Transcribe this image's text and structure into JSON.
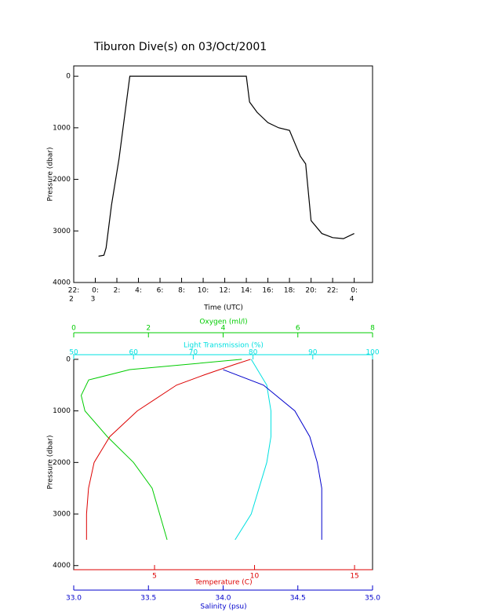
{
  "chart_data": [
    {
      "type": "line",
      "title": "Tiburon Dive(s) on 03/Oct/2001",
      "xlabel": "Time (UTC)",
      "ylabel": "Pressure (dbar)",
      "xlim": [
        -2,
        25.7
      ],
      "ylim": [
        4000,
        -200
      ],
      "xticks": [
        {
          "value": -2,
          "label": "22:"
        },
        {
          "value": 0,
          "label": "0:"
        },
        {
          "value": 2,
          "label": "2:"
        },
        {
          "value": 4,
          "label": "4:"
        },
        {
          "value": 6,
          "label": "6:"
        },
        {
          "value": 8,
          "label": "8:"
        },
        {
          "value": 10,
          "label": "10:"
        },
        {
          "value": 12,
          "label": "12:"
        },
        {
          "value": 14,
          "label": "14:"
        },
        {
          "value": 16,
          "label": "16:"
        },
        {
          "value": 18,
          "label": "18:"
        },
        {
          "value": 20,
          "label": "20:"
        },
        {
          "value": 22,
          "label": "22:"
        },
        {
          "value": 24,
          "label": "0:"
        }
      ],
      "xtick_days": [
        "2",
        "3",
        null,
        null,
        null,
        null,
        null,
        null,
        null,
        null,
        null,
        null,
        null,
        "4"
      ],
      "yticks": [
        0,
        1000,
        2000,
        3000,
        4000
      ],
      "x": [
        0.3,
        0.8,
        1.0,
        1.5,
        2.2,
        3.2,
        8,
        14.0,
        14.3,
        15,
        16,
        17,
        18,
        18.5,
        19,
        19.5,
        20,
        21,
        22,
        23,
        24
      ],
      "series": [
        {
          "color": "#000000",
          "values": [
            3490,
            3470,
            3330,
            2500,
            1600,
            0,
            0,
            0,
            500,
            700,
            900,
            1000,
            1050,
            1300,
            1550,
            1700,
            2800,
            3050,
            3130,
            3150,
            3050
          ]
        }
      ]
    },
    {
      "type": "profile",
      "ylabel": "Pressure (dbar)",
      "ylim": [
        4080,
        -90
      ],
      "yticks": [
        0,
        1000,
        2000,
        3000,
        4000
      ],
      "x_axes": [
        {
          "label": "Oxygen (ml/l)",
          "color": "#00cc00",
          "lim": [
            0,
            8
          ],
          "ticks": [
            0,
            2,
            4,
            6,
            8
          ]
        },
        {
          "label": "Light Transmission (%)",
          "color": "#00e0e0",
          "lim": [
            50,
            100
          ],
          "ticks": [
            50,
            60,
            70,
            80,
            90,
            100
          ]
        },
        {
          "label": "Temperature (C)",
          "color": "#dd0000",
          "lim": [
            0.96,
            15.9
          ],
          "ticks": [
            5,
            10,
            15
          ]
        },
        {
          "label": "Salinity (psu)",
          "color": "#0000cc",
          "lim": [
            33,
            35
          ],
          "ticks": [
            {
              "value": 33,
              "label": "33.0"
            },
            33.5,
            {
              "value": 34,
              "label": "34.0"
            },
            34.5,
            {
              "value": 35,
              "label": "35.0"
            }
          ]
        }
      ],
      "series": [
        {
          "axis": 0,
          "color": "#00cc00",
          "pressure": [
            0,
            100,
            200,
            400,
            700,
            1000,
            1500,
            2000,
            2500,
            3000,
            3500
          ],
          "values": [
            4.5,
            3.0,
            1.5,
            0.4,
            0.2,
            0.3,
            0.9,
            1.6,
            2.1,
            2.3,
            2.5
          ]
        },
        {
          "axis": 1,
          "color": "#00e0e0",
          "pressure": [
            0,
            500,
            1000,
            1500,
            2000,
            2500,
            3000,
            3500
          ],
          "values": [
            79.7,
            82.3,
            83,
            83,
            82.3,
            81,
            79.7,
            77
          ]
        },
        {
          "axis": 2,
          "color": "#dd0000",
          "pressure": [
            0,
            100,
            300,
            500,
            1000,
            1500,
            2000,
            2500,
            3000,
            3500
          ],
          "values": [
            9.8,
            9.0,
            7.5,
            6.1,
            4.14,
            2.76,
            1.98,
            1.7,
            1.6,
            1.6
          ]
        },
        {
          "axis": 3,
          "color": "#0000cc",
          "pressure": [
            200,
            500,
            1000,
            1500,
            2000,
            2500,
            3000,
            3500
          ],
          "values": [
            34.0,
            34.27,
            34.48,
            34.58,
            34.63,
            34.66,
            34.66,
            34.66
          ]
        }
      ]
    }
  ]
}
